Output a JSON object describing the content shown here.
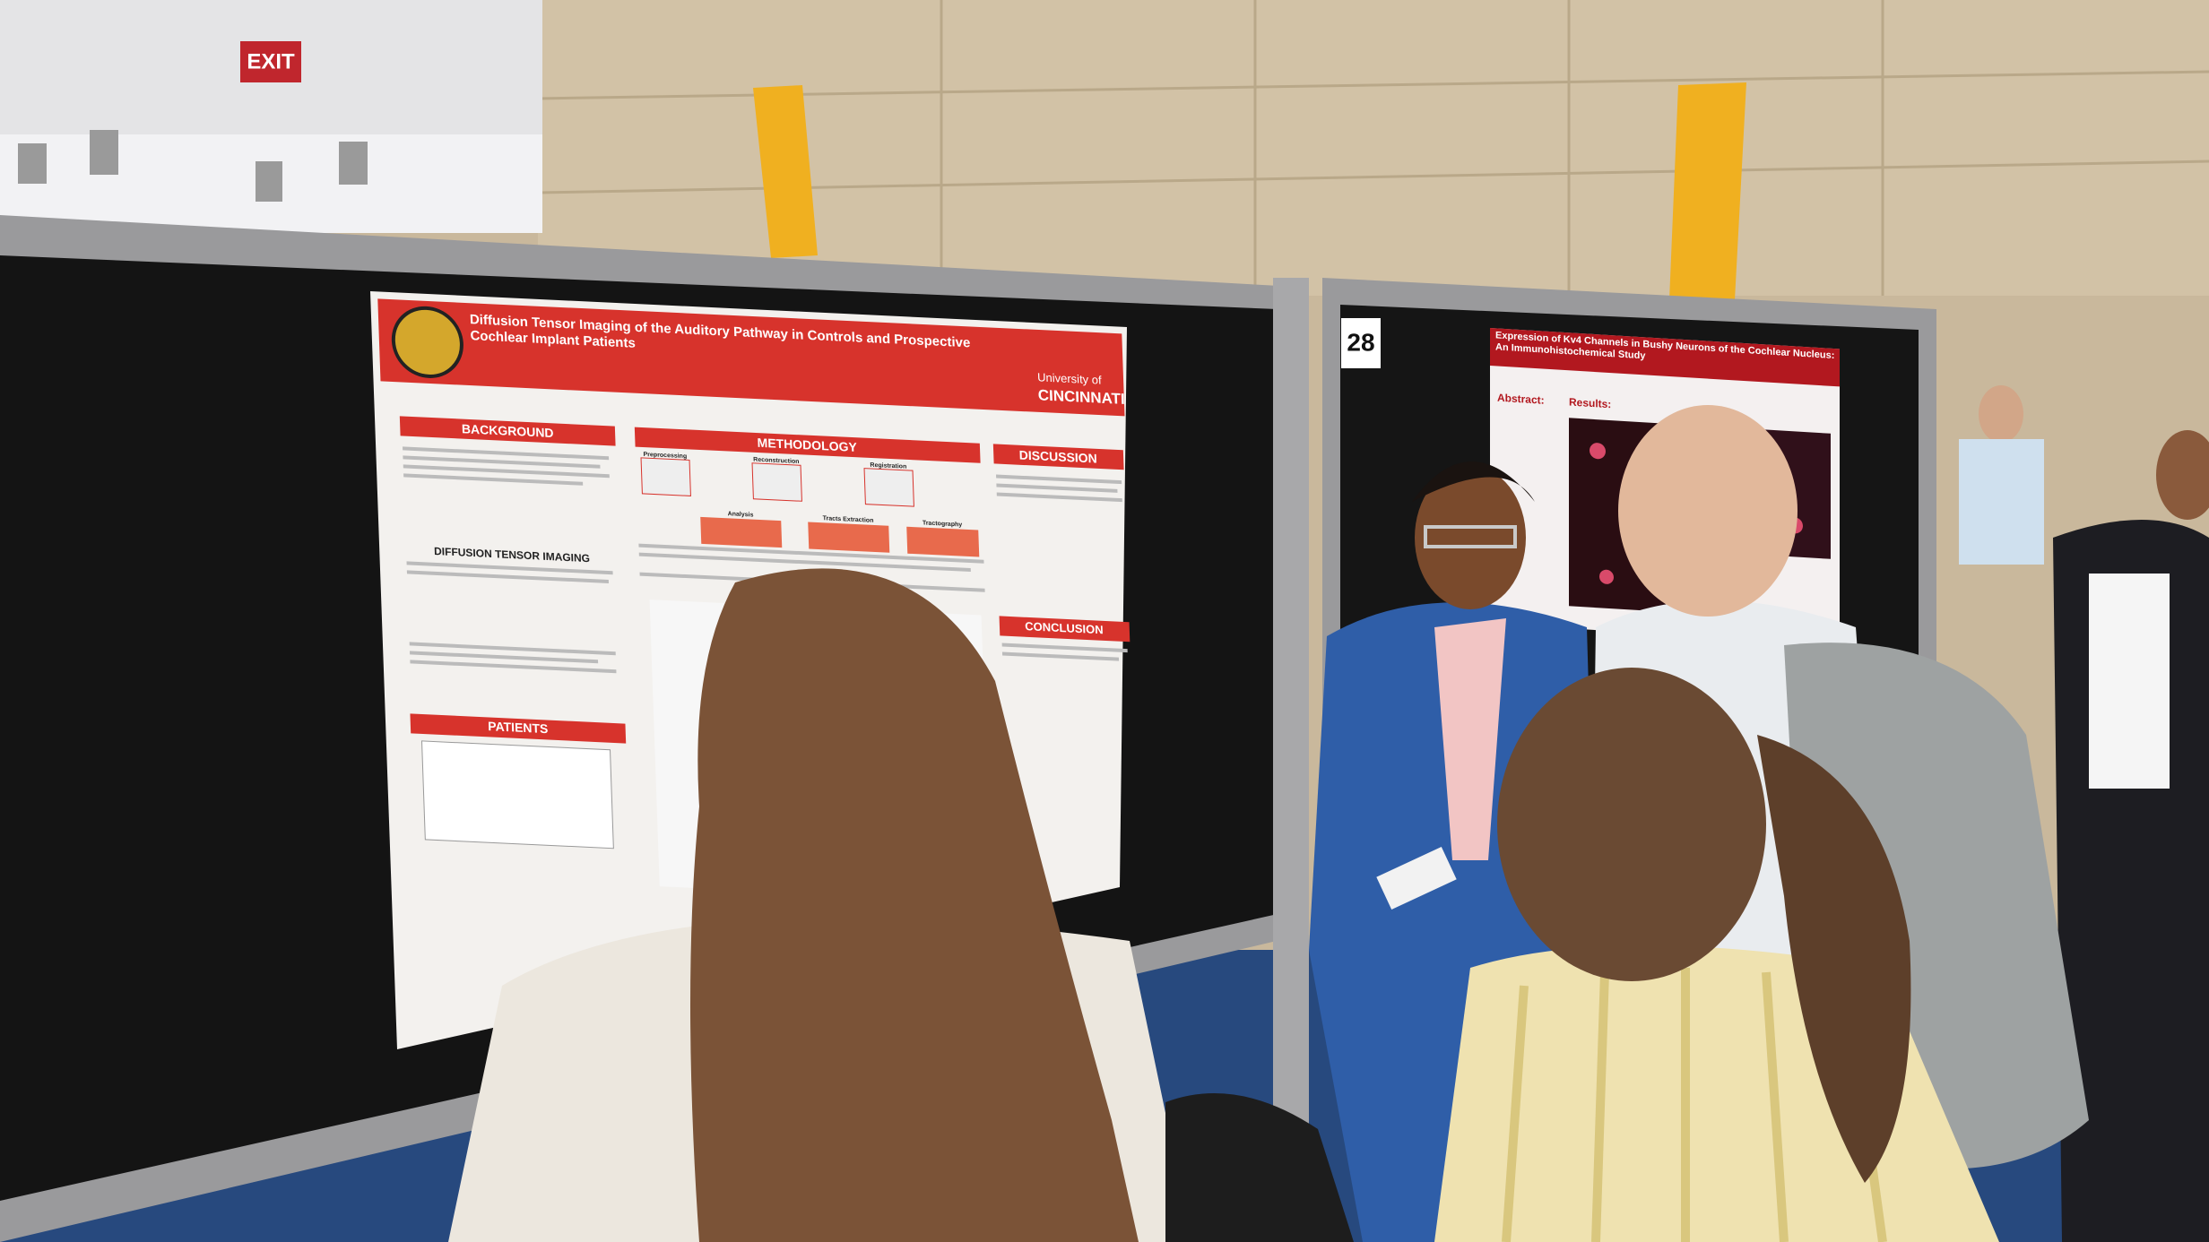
{
  "signs": {
    "exit": "EXIT",
    "board_number": "28"
  },
  "poster_1": {
    "title": "Diffusion Tensor Imaging of the Auditory Pathway in Controls and Prospective Cochlear Implant Patients",
    "institution": "University of",
    "institution_name": "CINCINNATI",
    "sections": [
      "BACKGROUND",
      "METHODOLOGY",
      "DISCUSSION",
      "DIFFUSION TENSOR IMAGING",
      "PATIENTS",
      "CONCLUSION"
    ],
    "steps": [
      "Preprocessing",
      "Reconstruction",
      "Registration",
      "Analysis",
      "Tracts Extraction",
      "Tractography"
    ]
  },
  "poster_2": {
    "title": "Expression of Kv4 Channels in Bushy Neurons of the Cochlear Nucleus: An Immunohistochemical Study",
    "sections": [
      "Abstract:",
      "Results:"
    ]
  }
}
